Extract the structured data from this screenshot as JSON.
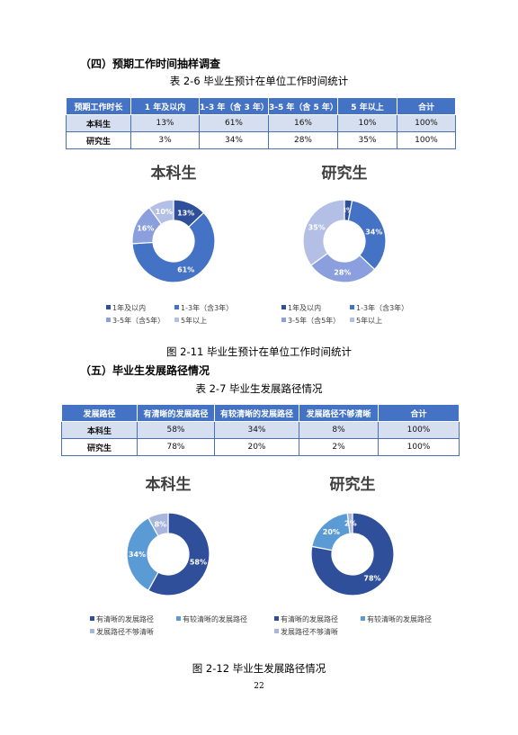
{
  "section4": {
    "heading": "（四）预期工作时间抽样调查",
    "table_caption": "表 2-6 毕业生预计在单位工作时间统计",
    "headers": [
      "预期工作时长",
      "1 年及以内",
      "1-3 年（含 3 年）",
      "3-5 年（含 5 年）",
      "5 年以上",
      "合计"
    ],
    "rows": [
      [
        "本科生",
        "13%",
        "61%",
        "16%",
        "10%",
        "100%"
      ],
      [
        "研究生",
        "3%",
        "34%",
        "28%",
        "35%",
        "100%"
      ]
    ],
    "figure_caption": "图 2-11 毕业生预计在单位工作时间统计"
  },
  "section5": {
    "heading": "（五）毕业生发展路径情况",
    "table_caption": "表 2-7 毕业生发展路径情况",
    "headers": [
      "发展路径",
      "有清晰的发展路径",
      "有较清晰的发展路径",
      "发展路径不够清晰",
      "合计"
    ],
    "rows": [
      [
        "本科生",
        "58%",
        "34%",
        "8%",
        "100%"
      ],
      [
        "研究生",
        "78%",
        "20%",
        "2%",
        "100%"
      ]
    ],
    "figure_caption": "图 2-12 毕业生发展路径情况"
  },
  "page_number": "22",
  "chart_data": [
    {
      "type": "pie",
      "title": "本科生",
      "categories": [
        "1年及以内",
        "1-3年（含3年）",
        "3-5年（含5年）",
        "5年以上"
      ],
      "values": [
        13,
        61,
        16,
        10
      ],
      "data_labels": [
        "13%",
        "61%",
        "16%",
        "10%"
      ],
      "colors": [
        "#2f4f9a",
        "#4472c4",
        "#8b9ede",
        "#b4bfe6"
      ],
      "donut": true,
      "legend_position": "bottom"
    },
    {
      "type": "pie",
      "title": "研究生",
      "categories": [
        "1年及以内",
        "1-3年（含3年）",
        "3-5年（含5年）",
        "5年以上"
      ],
      "values": [
        3,
        34,
        28,
        35
      ],
      "data_labels": [
        "3%",
        "34%",
        "28%",
        "35%"
      ],
      "colors": [
        "#2f4f9a",
        "#4472c4",
        "#8b9ede",
        "#b4bfe6"
      ],
      "donut": true,
      "legend_position": "bottom"
    },
    {
      "type": "pie",
      "title": "本科生",
      "categories": [
        "有清晰的发展路径",
        "有较清晰的发展路径",
        "发展路径不够清晰"
      ],
      "values": [
        58,
        34,
        8
      ],
      "data_labels": [
        "58%",
        "34%",
        "8%"
      ],
      "colors": [
        "#2f4f9a",
        "#5b9bd5",
        "#a9b6dc"
      ],
      "donut": true,
      "legend_position": "bottom"
    },
    {
      "type": "pie",
      "title": "研究生",
      "categories": [
        "有清晰的发展路径",
        "有较清晰的发展路径",
        "发展路径不够清晰"
      ],
      "values": [
        78,
        20,
        2
      ],
      "data_labels": [
        "78%",
        "20%",
        "2%"
      ],
      "colors": [
        "#2f4f9a",
        "#5b9bd5",
        "#a9b6dc"
      ],
      "donut": true,
      "legend_position": "bottom"
    }
  ]
}
